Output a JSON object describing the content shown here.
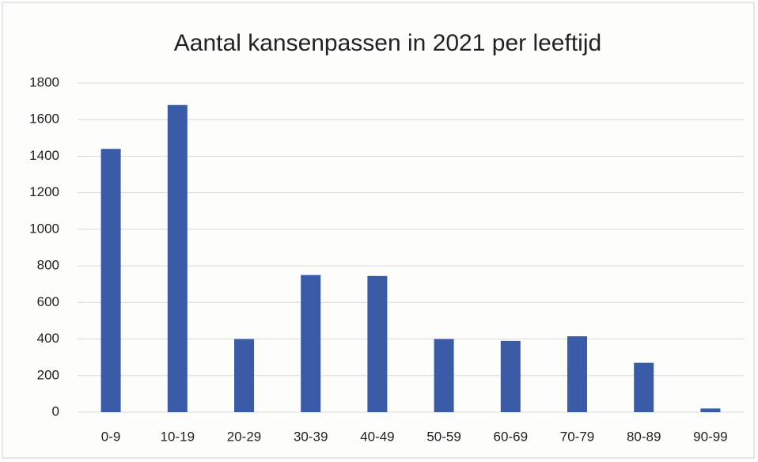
{
  "chart_data": {
    "type": "bar",
    "title": "Aantal kansenpassen in 2021 per leeftijd",
    "categories": [
      "0-9",
      "10-19",
      "20-29",
      "30-39",
      "40-49",
      "50-59",
      "60-69",
      "70-79",
      "80-89",
      "90-99"
    ],
    "values": [
      1440,
      1680,
      400,
      750,
      745,
      400,
      390,
      415,
      270,
      20
    ],
    "color": "#3a5ba8",
    "ylim": [
      0,
      1800
    ],
    "yticks": [
      0,
      200,
      400,
      600,
      800,
      1000,
      1200,
      1400,
      1600,
      1800
    ],
    "grid": true
  }
}
